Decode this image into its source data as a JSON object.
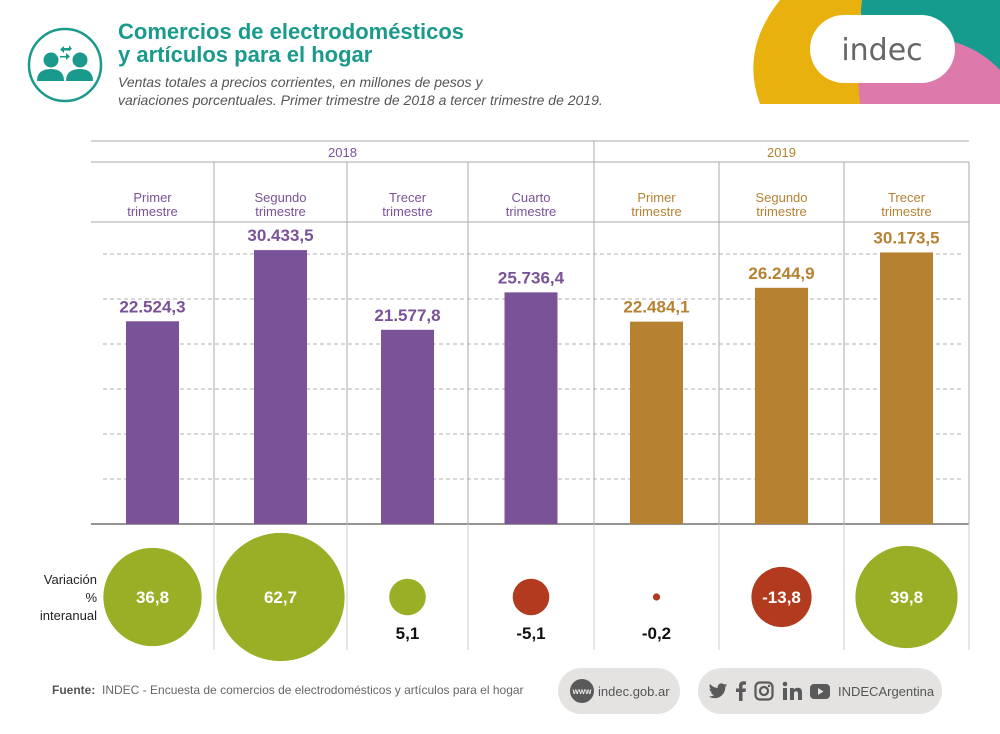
{
  "header": {
    "title_line1": "Comercios de electrodomésticos",
    "title_line2": "y artículos para el hogar",
    "subtitle_line1": "Ventas totales a precios corrientes, en millones de pesos y",
    "subtitle_line2": "variaciones porcentuales. Primer trimestre de 2018 a tercer trimestre de 2019.",
    "icon": "people-exchange-icon",
    "logo_text": "indec"
  },
  "colors": {
    "teal": "#1a9a8c",
    "purple_2018": "#7a5298",
    "gold_2019": "#b68232",
    "positive_bubble": "#9aae26",
    "negative_bubble": "#b23a1e",
    "logo_yellow": "#e9b10d",
    "logo_teal": "#169b8f",
    "logo_pink": "#dd7aab"
  },
  "chart_data": {
    "type": "bar",
    "title": "Comercios de electrodomésticos y artículos para el hogar",
    "ylabel": "Millones de pesos",
    "ylim": [
      0,
      30000
    ],
    "grid_step": 5000,
    "grid": true,
    "years": [
      {
        "label": "2018",
        "span": 4
      },
      {
        "label": "2019",
        "span": 3
      }
    ],
    "categories": [
      {
        "line1": "Primer",
        "line2": "trimestre",
        "year": "2018"
      },
      {
        "line1": "Segundo",
        "line2": "trimestre",
        "year": "2018"
      },
      {
        "line1": "Trecer",
        "line2": "trimestre",
        "year": "2018"
      },
      {
        "line1": "Cuarto",
        "line2": "trimestre",
        "year": "2018"
      },
      {
        "line1": "Primer",
        "line2": "trimestre",
        "year": "2019"
      },
      {
        "line1": "Segundo",
        "line2": "trimestre",
        "year": "2019"
      },
      {
        "line1": "Trecer",
        "line2": "trimestre",
        "year": "2019"
      }
    ],
    "values": [
      22524.3,
      30433.5,
      21577.8,
      25736.4,
      22484.1,
      26244.9,
      30173.5
    ],
    "value_labels": [
      "22.524,3",
      "30.433,5",
      "21.577,8",
      "25.736,4",
      "22.484,1",
      "26.244,9",
      "30.173,5"
    ],
    "variation": {
      "label_lines": [
        "Variación",
        "%",
        "interanual"
      ],
      "values": [
        36.8,
        62.7,
        5.1,
        -5.1,
        -0.2,
        -13.8,
        39.8
      ],
      "labels": [
        "36,8",
        "62,7",
        "5,1",
        "-5,1",
        "-0,2",
        "-13,8",
        "39,8"
      ]
    }
  },
  "footer": {
    "source_label": "Fuente:",
    "source_text": "INDEC - Encuesta de comercios de electrodomésticos y artículos para el hogar",
    "www_badge": "www",
    "website": "indec.gob.ar",
    "social_icons": [
      "twitter-icon",
      "facebook-icon",
      "instagram-icon",
      "linkedin-icon",
      "youtube-icon"
    ],
    "social_handle": "INDECArgentina"
  }
}
